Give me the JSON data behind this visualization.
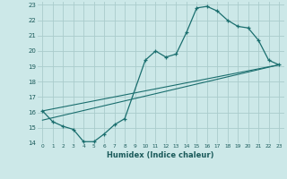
{
  "xlabel": "Humidex (Indice chaleur)",
  "bg_color": "#cce8e8",
  "grid_color": "#aacccc",
  "line_color": "#1a6e6e",
  "xlim": [
    -0.5,
    23.5
  ],
  "ylim": [
    14,
    23.2
  ],
  "xticks": [
    0,
    1,
    2,
    3,
    4,
    5,
    6,
    7,
    8,
    9,
    10,
    11,
    12,
    13,
    14,
    15,
    16,
    17,
    18,
    19,
    20,
    21,
    22,
    23
  ],
  "yticks": [
    14,
    15,
    16,
    17,
    18,
    19,
    20,
    21,
    22,
    23
  ],
  "line1_x": [
    0,
    1,
    2,
    3,
    4,
    5,
    6,
    7,
    8,
    10,
    11,
    12,
    13,
    14,
    15,
    16,
    17,
    18,
    19,
    20,
    21,
    22,
    23
  ],
  "line1_y": [
    16.1,
    15.4,
    15.1,
    14.9,
    14.1,
    14.1,
    14.6,
    15.2,
    15.6,
    19.4,
    20.0,
    19.6,
    19.8,
    21.2,
    22.8,
    22.9,
    22.6,
    22.0,
    21.6,
    21.5,
    20.7,
    19.4,
    19.1
  ],
  "line2_x": [
    0,
    23
  ],
  "line2_y": [
    15.5,
    19.1
  ],
  "line3_x": [
    0,
    23
  ],
  "line3_y": [
    16.1,
    19.1
  ]
}
